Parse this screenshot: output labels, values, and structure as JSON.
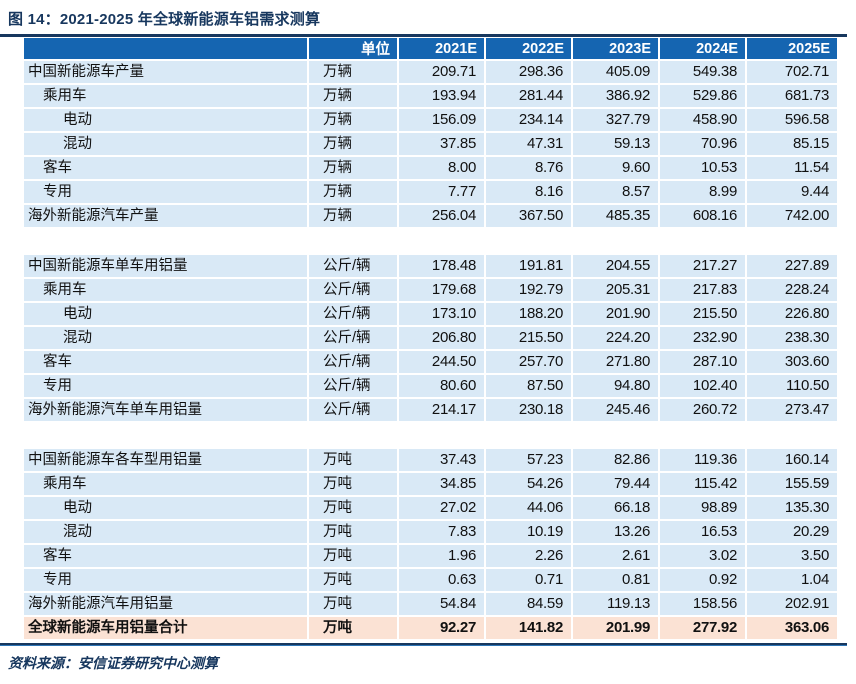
{
  "title": "图 14：2021-2025 年全球新能源车铝需求测算",
  "source": "资料来源：安信证券研究中心测算",
  "colors": {
    "header_bg": "#1565b1",
    "row_bg": "#d9e9f6",
    "total_bg": "#fbe2d4",
    "rule_navy": "#17375e",
    "accent_blue": "#2e75b6",
    "title_color": "#17375e",
    "header_text": "#ffffff",
    "body_text": "#111111"
  },
  "table": {
    "unit_header": "单位",
    "year_headers": [
      "2021E",
      "2022E",
      "2023E",
      "2024E",
      "2025E"
    ],
    "rows": [
      {
        "type": "data",
        "indent": 0,
        "label": "中国新能源车产量",
        "unit": "万辆",
        "values": [
          "209.71",
          "298.36",
          "405.09",
          "549.38",
          "702.71"
        ]
      },
      {
        "type": "data",
        "indent": 1,
        "label": "乘用车",
        "unit": "万辆",
        "values": [
          "193.94",
          "281.44",
          "386.92",
          "529.86",
          "681.73"
        ]
      },
      {
        "type": "data",
        "indent": 2,
        "label": "电动",
        "unit": "万辆",
        "values": [
          "156.09",
          "234.14",
          "327.79",
          "458.90",
          "596.58"
        ]
      },
      {
        "type": "data",
        "indent": 2,
        "label": "混动",
        "unit": "万辆",
        "values": [
          "37.85",
          "47.31",
          "59.13",
          "70.96",
          "85.15"
        ]
      },
      {
        "type": "data",
        "indent": 1,
        "label": "客车",
        "unit": "万辆",
        "values": [
          "8.00",
          "8.76",
          "9.60",
          "10.53",
          "11.54"
        ]
      },
      {
        "type": "data",
        "indent": 1,
        "label": "专用",
        "unit": "万辆",
        "values": [
          "7.77",
          "8.16",
          "8.57",
          "8.99",
          "9.44"
        ]
      },
      {
        "type": "data",
        "indent": 0,
        "label": "海外新能源汽车产量",
        "unit": "万辆",
        "values": [
          "256.04",
          "367.50",
          "485.35",
          "608.16",
          "742.00"
        ]
      },
      {
        "type": "gap"
      },
      {
        "type": "data",
        "indent": 0,
        "label": "中国新能源车单车用铝量",
        "unit": "公斤/辆",
        "values": [
          "178.48",
          "191.81",
          "204.55",
          "217.27",
          "227.89"
        ]
      },
      {
        "type": "data",
        "indent": 1,
        "label": "乘用车",
        "unit": "公斤/辆",
        "values": [
          "179.68",
          "192.79",
          "205.31",
          "217.83",
          "228.24"
        ]
      },
      {
        "type": "data",
        "indent": 2,
        "label": "电动",
        "unit": "公斤/辆",
        "values": [
          "173.10",
          "188.20",
          "201.90",
          "215.50",
          "226.80"
        ]
      },
      {
        "type": "data",
        "indent": 2,
        "label": "混动",
        "unit": "公斤/辆",
        "values": [
          "206.80",
          "215.50",
          "224.20",
          "232.90",
          "238.30"
        ]
      },
      {
        "type": "data",
        "indent": 1,
        "label": "客车",
        "unit": "公斤/辆",
        "values": [
          "244.50",
          "257.70",
          "271.80",
          "287.10",
          "303.60"
        ]
      },
      {
        "type": "data",
        "indent": 1,
        "label": "专用",
        "unit": "公斤/辆",
        "values": [
          "80.60",
          "87.50",
          "94.80",
          "102.40",
          "110.50"
        ]
      },
      {
        "type": "data",
        "indent": 0,
        "label": "海外新能源汽车单车用铝量",
        "unit": "公斤/辆",
        "values": [
          "214.17",
          "230.18",
          "245.46",
          "260.72",
          "273.47"
        ]
      },
      {
        "type": "gap"
      },
      {
        "type": "data",
        "indent": 0,
        "label": "中国新能源车各车型用铝量",
        "unit": "万吨",
        "values": [
          "37.43",
          "57.23",
          "82.86",
          "119.36",
          "160.14"
        ]
      },
      {
        "type": "data",
        "indent": 1,
        "label": "乘用车",
        "unit": "万吨",
        "values": [
          "34.85",
          "54.26",
          "79.44",
          "115.42",
          "155.59"
        ]
      },
      {
        "type": "data",
        "indent": 2,
        "label": "电动",
        "unit": "万吨",
        "values": [
          "27.02",
          "44.06",
          "66.18",
          "98.89",
          "135.30"
        ]
      },
      {
        "type": "data",
        "indent": 2,
        "label": "混动",
        "unit": "万吨",
        "values": [
          "7.83",
          "10.19",
          "13.26",
          "16.53",
          "20.29"
        ]
      },
      {
        "type": "data",
        "indent": 1,
        "label": "客车",
        "unit": "万吨",
        "values": [
          "1.96",
          "2.26",
          "2.61",
          "3.02",
          "3.50"
        ]
      },
      {
        "type": "data",
        "indent": 1,
        "label": "专用",
        "unit": "万吨",
        "values": [
          "0.63",
          "0.71",
          "0.81",
          "0.92",
          "1.04"
        ]
      },
      {
        "type": "data",
        "indent": 0,
        "label": "海外新能源汽车用铝量",
        "unit": "万吨",
        "values": [
          "54.84",
          "84.59",
          "119.13",
          "158.56",
          "202.91"
        ]
      },
      {
        "type": "total",
        "indent": 0,
        "label": "全球新能源车用铝量合计",
        "unit": "万吨",
        "values": [
          "92.27",
          "141.82",
          "201.99",
          "277.92",
          "363.06"
        ]
      }
    ]
  }
}
